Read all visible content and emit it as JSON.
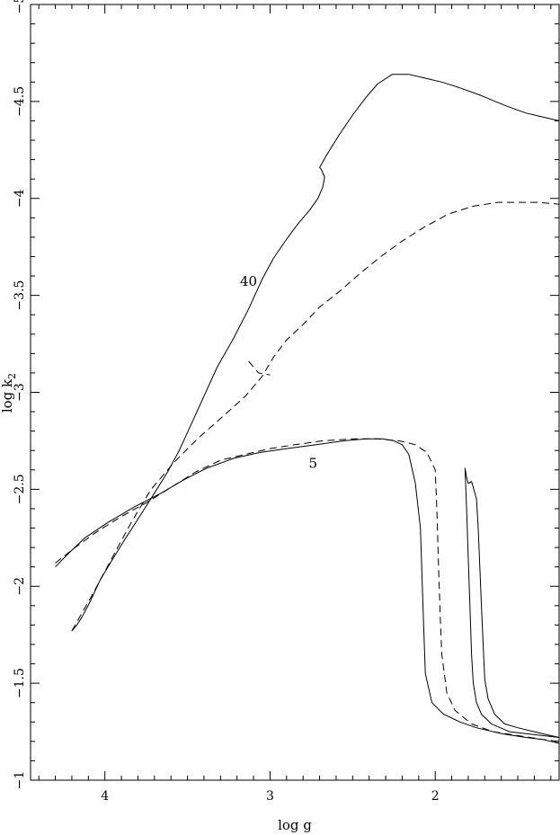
{
  "chart_data": {
    "type": "line",
    "xlabel": "log g",
    "ylabel_main": "log k",
    "ylabel_sub": "2",
    "xlim": [
      4.45,
      1.25
    ],
    "ylim": [
      -1,
      -5
    ],
    "x_major_ticks": [
      4,
      3,
      2
    ],
    "x_tick_labels": [
      "4",
      "3",
      "2"
    ],
    "x_minor_step": 0.1,
    "y_major_ticks": [
      -1,
      -1.5,
      -2,
      -2.5,
      -3,
      -3.5,
      -4,
      -4.5,
      -5
    ],
    "y_tick_labels": [
      "−1",
      "−1.5",
      "−2",
      "−2.5",
      "−3",
      "−3.5",
      "−4",
      "−4.5",
      "−5"
    ],
    "y_minor_step": 0.1,
    "grid": false,
    "legend": "none",
    "annotations": [
      {
        "text": "40",
        "x": 3.13,
        "y": -3.55
      },
      {
        "text": "5",
        "x": 2.74,
        "y": -2.61
      }
    ],
    "series": [
      {
        "style": "solid",
        "points": [
          [
            4.2,
            -1.77
          ],
          [
            4.17,
            -1.8
          ],
          [
            4.14,
            -1.84
          ],
          [
            4.09,
            -1.92
          ],
          [
            4.03,
            -2.03
          ],
          [
            3.96,
            -2.13
          ],
          [
            3.88,
            -2.24
          ],
          [
            3.79,
            -2.36
          ],
          [
            3.7,
            -2.48
          ],
          [
            3.62,
            -2.59
          ],
          [
            3.55,
            -2.7
          ],
          [
            3.48,
            -2.83
          ],
          [
            3.4,
            -2.98
          ],
          [
            3.32,
            -3.13
          ],
          [
            3.22,
            -3.28
          ],
          [
            3.13,
            -3.43
          ],
          [
            3.05,
            -3.58
          ],
          [
            2.98,
            -3.69
          ],
          [
            2.9,
            -3.79
          ],
          [
            2.83,
            -3.87
          ],
          [
            2.76,
            -3.94
          ],
          [
            2.71,
            -4.0
          ],
          [
            2.68,
            -4.06
          ],
          [
            2.67,
            -4.11
          ],
          [
            2.69,
            -4.15
          ],
          [
            2.7,
            -4.16
          ],
          [
            2.66,
            -4.22
          ],
          [
            2.58,
            -4.33
          ],
          [
            2.5,
            -4.43
          ],
          [
            2.42,
            -4.52
          ],
          [
            2.35,
            -4.59
          ],
          [
            2.26,
            -4.64
          ],
          [
            2.16,
            -4.64
          ],
          [
            2.06,
            -4.62
          ],
          [
            1.96,
            -4.6
          ],
          [
            1.85,
            -4.57
          ],
          [
            1.72,
            -4.53
          ],
          [
            1.58,
            -4.48
          ],
          [
            1.45,
            -4.44
          ],
          [
            1.35,
            -4.42
          ],
          [
            1.25,
            -4.4
          ]
        ]
      },
      {
        "style": "dashed",
        "points": [
          [
            4.2,
            -1.77
          ],
          [
            4.08,
            -1.95
          ],
          [
            3.96,
            -2.14
          ],
          [
            3.84,
            -2.33
          ],
          [
            3.72,
            -2.5
          ],
          [
            3.58,
            -2.64
          ],
          [
            3.44,
            -2.76
          ],
          [
            3.28,
            -2.88
          ],
          [
            3.15,
            -2.98
          ],
          [
            3.05,
            -3.08
          ],
          [
            2.98,
            -3.18
          ],
          [
            2.9,
            -3.27
          ],
          [
            2.8,
            -3.35
          ],
          [
            2.7,
            -3.44
          ],
          [
            2.58,
            -3.52
          ],
          [
            2.46,
            -3.61
          ],
          [
            2.33,
            -3.7
          ],
          [
            2.2,
            -3.78
          ],
          [
            2.07,
            -3.85
          ],
          [
            1.92,
            -3.92
          ],
          [
            1.77,
            -3.96
          ],
          [
            1.62,
            -3.98
          ],
          [
            1.5,
            -3.98
          ],
          [
            1.38,
            -3.98
          ],
          [
            1.25,
            -3.97
          ]
        ]
      },
      {
        "style": "solid",
        "points": [
          [
            4.3,
            -2.1
          ],
          [
            4.22,
            -2.17
          ],
          [
            4.12,
            -2.25
          ],
          [
            3.98,
            -2.33
          ],
          [
            3.82,
            -2.41
          ],
          [
            3.66,
            -2.48
          ],
          [
            3.52,
            -2.55
          ],
          [
            3.38,
            -2.61
          ],
          [
            3.22,
            -2.66
          ],
          [
            3.06,
            -2.69
          ],
          [
            2.9,
            -2.71
          ],
          [
            2.72,
            -2.73
          ],
          [
            2.55,
            -2.75
          ],
          [
            2.42,
            -2.76
          ],
          [
            2.32,
            -2.76
          ],
          [
            2.25,
            -2.75
          ],
          [
            2.2,
            -2.73
          ],
          [
            2.16,
            -2.68
          ],
          [
            2.12,
            -2.53
          ],
          [
            2.09,
            -2.3
          ],
          [
            2.08,
            -2.05
          ],
          [
            2.07,
            -1.8
          ],
          [
            2.06,
            -1.55
          ],
          [
            2.02,
            -1.4
          ],
          [
            1.95,
            -1.34
          ],
          [
            1.85,
            -1.3
          ],
          [
            1.75,
            -1.27
          ],
          [
            1.6,
            -1.24
          ],
          [
            1.45,
            -1.22
          ],
          [
            1.35,
            -1.21
          ],
          [
            1.25,
            -1.19
          ]
        ]
      },
      {
        "style": "dashed",
        "points": [
          [
            4.3,
            -2.12
          ],
          [
            4.18,
            -2.2
          ],
          [
            4.05,
            -2.28
          ],
          [
            3.9,
            -2.36
          ],
          [
            3.75,
            -2.43
          ],
          [
            3.6,
            -2.51
          ],
          [
            3.45,
            -2.59
          ],
          [
            3.3,
            -2.65
          ],
          [
            3.15,
            -2.68
          ],
          [
            3.0,
            -2.71
          ],
          [
            2.85,
            -2.73
          ],
          [
            2.68,
            -2.75
          ],
          [
            2.5,
            -2.76
          ],
          [
            2.35,
            -2.76
          ],
          [
            2.22,
            -2.75
          ],
          [
            2.12,
            -2.73
          ],
          [
            2.05,
            -2.69
          ],
          [
            2.0,
            -2.6
          ],
          [
            1.99,
            -2.4
          ],
          [
            1.98,
            -2.1
          ],
          [
            1.97,
            -1.85
          ],
          [
            1.96,
            -1.65
          ],
          [
            1.93,
            -1.45
          ],
          [
            1.88,
            -1.36
          ],
          [
            1.78,
            -1.29
          ],
          [
            1.65,
            -1.25
          ],
          [
            1.5,
            -1.23
          ],
          [
            1.35,
            -1.21
          ],
          [
            1.25,
            -1.2
          ]
        ]
      },
      {
        "style": "solid",
        "points": [
          [
            1.82,
            -2.61
          ],
          [
            1.81,
            -2.56
          ],
          [
            1.8,
            -2.53
          ],
          [
            1.78,
            -2.54
          ],
          [
            1.77,
            -2.51
          ],
          [
            1.76,
            -2.48
          ],
          [
            1.75,
            -2.45
          ],
          [
            1.74,
            -2.3
          ],
          [
            1.73,
            -2.1
          ],
          [
            1.72,
            -1.9
          ],
          [
            1.71,
            -1.7
          ],
          [
            1.7,
            -1.52
          ],
          [
            1.68,
            -1.42
          ],
          [
            1.64,
            -1.34
          ],
          [
            1.58,
            -1.29
          ],
          [
            1.5,
            -1.27
          ],
          [
            1.4,
            -1.25
          ],
          [
            1.3,
            -1.23
          ],
          [
            1.25,
            -1.22
          ]
        ]
      },
      {
        "style": "solid",
        "points": [
          [
            1.82,
            -2.61
          ],
          [
            1.81,
            -2.4
          ],
          [
            1.8,
            -2.15
          ],
          [
            1.79,
            -1.9
          ],
          [
            1.78,
            -1.65
          ],
          [
            1.77,
            -1.5
          ],
          [
            1.75,
            -1.4
          ],
          [
            1.72,
            -1.34
          ],
          [
            1.66,
            -1.29
          ],
          [
            1.55,
            -1.25
          ],
          [
            1.45,
            -1.24
          ],
          [
            1.35,
            -1.23
          ],
          [
            1.25,
            -1.22
          ]
        ]
      },
      {
        "style": "dashed",
        "points": [
          [
            3.13,
            -3.16
          ],
          [
            3.07,
            -3.1
          ],
          [
            3.0,
            -3.09
          ]
        ]
      }
    ]
  }
}
